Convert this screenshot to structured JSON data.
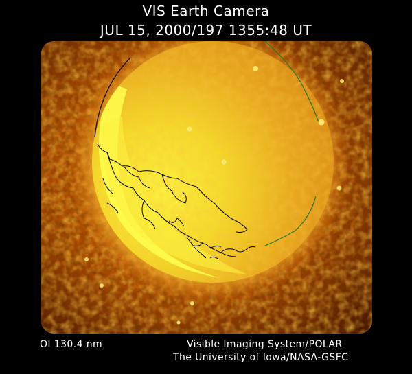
{
  "header": {
    "title": "VIS Earth Camera",
    "timestamp": "JUL 15, 2000/197 1355:48 UT"
  },
  "footer": {
    "wavelength": "OI  130.4 nm",
    "credit_line1": "Visible Imaging System/POLAR",
    "credit_line2": "The University of Iowa/NASA-GSFC"
  },
  "image": {
    "subject": "earth-disk-far-ultraviolet",
    "colors": {
      "background_dark": "#3a1200",
      "background_mid": "#a84a00",
      "glow_orange": "#e07a10",
      "disk_yellow": "#f6e43a",
      "limb_bright": "#ffff60",
      "coastline": "#000000",
      "limb_green": "#2a7a20"
    }
  }
}
